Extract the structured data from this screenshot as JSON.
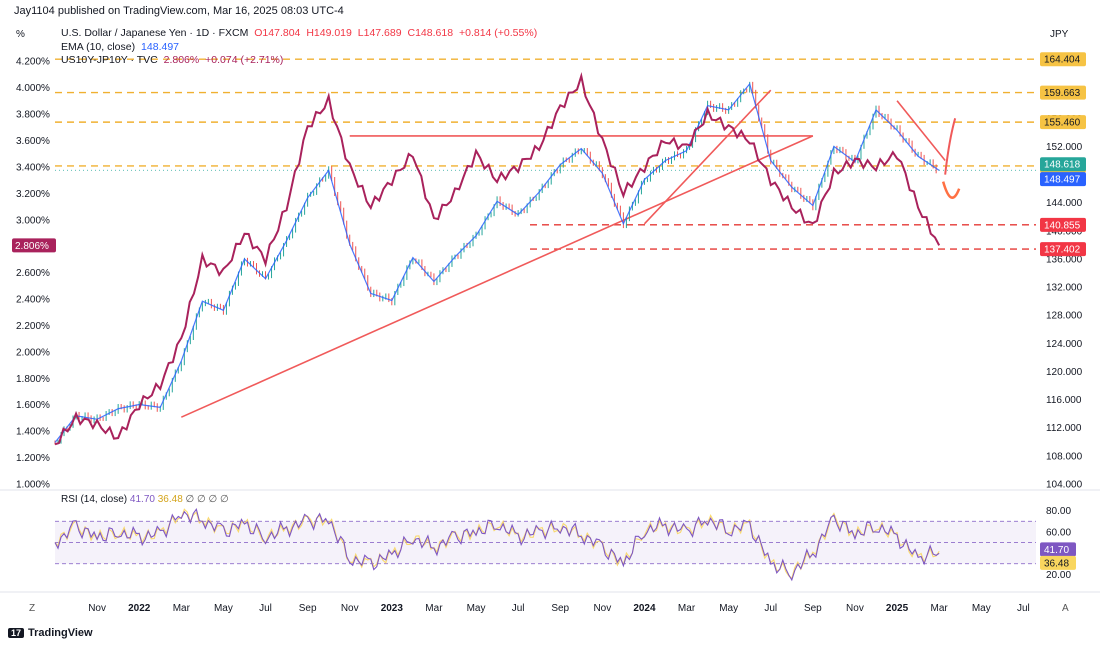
{
  "header": {
    "publish_line": "Jay1104 published on TradingView.com, Mar 16, 2025 08:03 UTC-4",
    "left_unit": "%",
    "right_unit": "JPY"
  },
  "legend": {
    "main": {
      "title": "U.S. Dollar / Japanese Yen · 1D · FXCM",
      "o": "O147.804",
      "h": "H149.019",
      "l": "L147.689",
      "c": "C148.618",
      "change": "+0.814 (+0.55%)"
    },
    "ema": {
      "label": "EMA (10, close)",
      "value": "148.497"
    },
    "spread": {
      "label": "US10Y-JP10Y · TVC",
      "value": "2.806%",
      "change": "+0.074 (+2.71%)"
    }
  },
  "rsi_legend": {
    "label": "RSI (14, close)",
    "v1": "41.70",
    "v2": "36.48",
    "icons": "∅ ∅ ∅ ∅"
  },
  "footer": {
    "logo_mark": "17",
    "brand": "TradingView"
  },
  "axis_extra": {
    "left_corner": "Z",
    "right_corner": "A"
  },
  "colors": {
    "candle_up": "#26a69a",
    "candle_down": "#ef5350",
    "ema": "#2962ff",
    "spread": "#a9225c",
    "trend": "#f05a5a",
    "level_dash": "#f0b030",
    "level_red": "#e53935",
    "rsi": "#7e57c2",
    "rsi_ma": "#f9d65e"
  },
  "chart_data": [
    {
      "type": "line",
      "title": "U.S. Dollar / Japanese Yen · 1D · FXCM",
      "y_axis": "right",
      "ylim": [
        104,
        166
      ],
      "y_ticks": [
        "164.000",
        "160.000",
        "156.000",
        "152.000",
        "148.000",
        "144.000",
        "140.000",
        "136.000",
        "132.000",
        "128.000",
        "124.000",
        "120.000",
        "116.000",
        "112.000",
        "108.000",
        "104.000"
      ],
      "x_ticks": [
        "Nov",
        "2022",
        "Mar",
        "May",
        "Jul",
        "Sep",
        "Nov",
        "2023",
        "Mar",
        "May",
        "Jul",
        "Sep",
        "Nov",
        "2024",
        "Mar",
        "May",
        "Jul",
        "Sep",
        "Nov",
        "2025",
        "Mar",
        "May",
        "Jul"
      ],
      "series": [
        {
          "name": "USDJPY",
          "x": [
            "2021-09",
            "2021-10",
            "2021-11",
            "2021-12",
            "2022-01",
            "2022-02",
            "2022-03",
            "2022-04",
            "2022-05",
            "2022-06",
            "2022-07",
            "2022-08",
            "2022-09",
            "2022-10",
            "2022-11",
            "2022-12",
            "2023-01",
            "2023-02",
            "2023-03",
            "2023-04",
            "2023-05",
            "2023-06",
            "2023-07",
            "2023-08",
            "2023-09",
            "2023-10",
            "2023-11",
            "2023-12",
            "2024-01",
            "2024-02",
            "2024-03",
            "2024-04",
            "2024-05",
            "2024-06",
            "2024-07",
            "2024-08",
            "2024-09",
            "2024-10",
            "2024-11",
            "2024-12",
            "2025-01",
            "2025-02",
            "2025-03"
          ],
          "values": [
            109.9,
            113.7,
            113.2,
            114.7,
            115.3,
            114.9,
            121.5,
            130.0,
            128.7,
            136.0,
            133.2,
            138.6,
            144.7,
            148.6,
            138.1,
            131.1,
            130.1,
            136.2,
            132.8,
            136.3,
            139.3,
            144.2,
            142.3,
            145.5,
            149.4,
            151.7,
            148.2,
            141.0,
            147.3,
            150.0,
            151.4,
            157.8,
            157.2,
            160.9,
            150.0,
            146.2,
            143.6,
            152.0,
            149.8,
            157.2,
            154.3,
            150.6,
            148.6
          ]
        },
        {
          "name": "EMA (10, close)",
          "x": [
            "2025-03"
          ],
          "values": [
            148.497
          ]
        }
      ],
      "horizontal_levels": [
        {
          "value": 164.404,
          "label": "164.404",
          "style": "orange-dashed"
        },
        {
          "value": 159.663,
          "label": "159.663",
          "style": "orange-dashed"
        },
        {
          "value": 155.46,
          "label": "155.460",
          "style": "orange-dashed"
        },
        {
          "value": 149.23,
          "label": "149.230",
          "style": "orange-dashed"
        },
        {
          "value": 140.855,
          "label": "140.855",
          "style": "red-dashed"
        },
        {
          "value": 137.402,
          "label": "137.402",
          "style": "red-dashed"
        }
      ],
      "price_tags": [
        {
          "value": 148.618,
          "label": "148.618"
        },
        {
          "value": 148.497,
          "label": "148.497"
        }
      ]
    },
    {
      "type": "line",
      "title": "US10Y-JP10Y · TVC",
      "y_axis": "left",
      "ylim": [
        1.0,
        4.3
      ],
      "y_ticks": [
        "4.200%",
        "4.000%",
        "3.800%",
        "3.600%",
        "3.400%",
        "3.200%",
        "3.000%",
        "2.800%",
        "2.600%",
        "2.400%",
        "2.200%",
        "2.000%",
        "1.800%",
        "1.600%",
        "1.400%",
        "1.200%",
        "1.000%"
      ],
      "series": [
        {
          "name": "US10Y-JP10Y",
          "x": [
            "2021-09",
            "2021-10",
            "2021-11",
            "2021-12",
            "2022-01",
            "2022-02",
            "2022-03",
            "2022-04",
            "2022-05",
            "2022-06",
            "2022-07",
            "2022-08",
            "2022-09",
            "2022-10",
            "2022-11",
            "2022-12",
            "2023-01",
            "2023-02",
            "2023-03",
            "2023-04",
            "2023-05",
            "2023-06",
            "2023-07",
            "2023-08",
            "2023-09",
            "2023-10",
            "2023-11",
            "2023-12",
            "2024-01",
            "2024-02",
            "2024-03",
            "2024-04",
            "2024-05",
            "2024-06",
            "2024-07",
            "2024-08",
            "2024-09",
            "2024-10",
            "2024-11",
            "2024-12",
            "2025-01",
            "2025-02",
            "2025-03"
          ],
          "values": [
            1.3,
            1.5,
            1.45,
            1.35,
            1.6,
            1.75,
            2.1,
            2.7,
            2.6,
            2.9,
            2.7,
            3.1,
            3.7,
            3.9,
            3.4,
            3.1,
            3.3,
            3.5,
            3.0,
            3.2,
            3.5,
            3.3,
            3.4,
            3.55,
            3.85,
            4.05,
            3.6,
            3.2,
            3.4,
            3.6,
            3.55,
            3.8,
            3.7,
            3.6,
            3.3,
            3.1,
            2.95,
            3.35,
            3.45,
            3.4,
            3.5,
            3.1,
            2.806
          ]
        }
      ],
      "price_tags": [
        {
          "value": 2.806,
          "label": "2.806%"
        }
      ]
    },
    {
      "type": "line",
      "title": "RSI (14, close)",
      "ylim": [
        10,
        90
      ],
      "y_ticks": [
        "80.00",
        "60.00",
        "20.00"
      ],
      "series": [
        {
          "name": "RSI (14, close)",
          "x": [
            "2021-09",
            "2021-10",
            "2021-11",
            "2021-12",
            "2022-01",
            "2022-02",
            "2022-03",
            "2022-04",
            "2022-05",
            "2022-06",
            "2022-07",
            "2022-08",
            "2022-09",
            "2022-10",
            "2022-11",
            "2022-12",
            "2023-01",
            "2023-02",
            "2023-03",
            "2023-04",
            "2023-05",
            "2023-06",
            "2023-07",
            "2023-08",
            "2023-09",
            "2023-10",
            "2023-11",
            "2023-12",
            "2024-01",
            "2024-02",
            "2024-03",
            "2024-04",
            "2024-05",
            "2024-06",
            "2024-07",
            "2024-08",
            "2024-09",
            "2024-10",
            "2024-11",
            "2024-12",
            "2025-01",
            "2025-02",
            "2025-03"
          ],
          "values": [
            50,
            65,
            55,
            60,
            55,
            58,
            78,
            72,
            60,
            68,
            55,
            63,
            70,
            72,
            35,
            30,
            38,
            55,
            45,
            55,
            60,
            68,
            55,
            60,
            65,
            58,
            45,
            30,
            62,
            66,
            60,
            72,
            62,
            66,
            30,
            22,
            40,
            72,
            58,
            66,
            55,
            35,
            41.7
          ]
        },
        {
          "name": "RSI MA",
          "x": [
            "2025-03"
          ],
          "values": [
            36.48
          ]
        }
      ],
      "bands": [
        70,
        50,
        30
      ],
      "price_tags": [
        {
          "value": 41.7,
          "label": "41.70"
        },
        {
          "value": 36.48,
          "label": "36.48"
        }
      ]
    }
  ]
}
